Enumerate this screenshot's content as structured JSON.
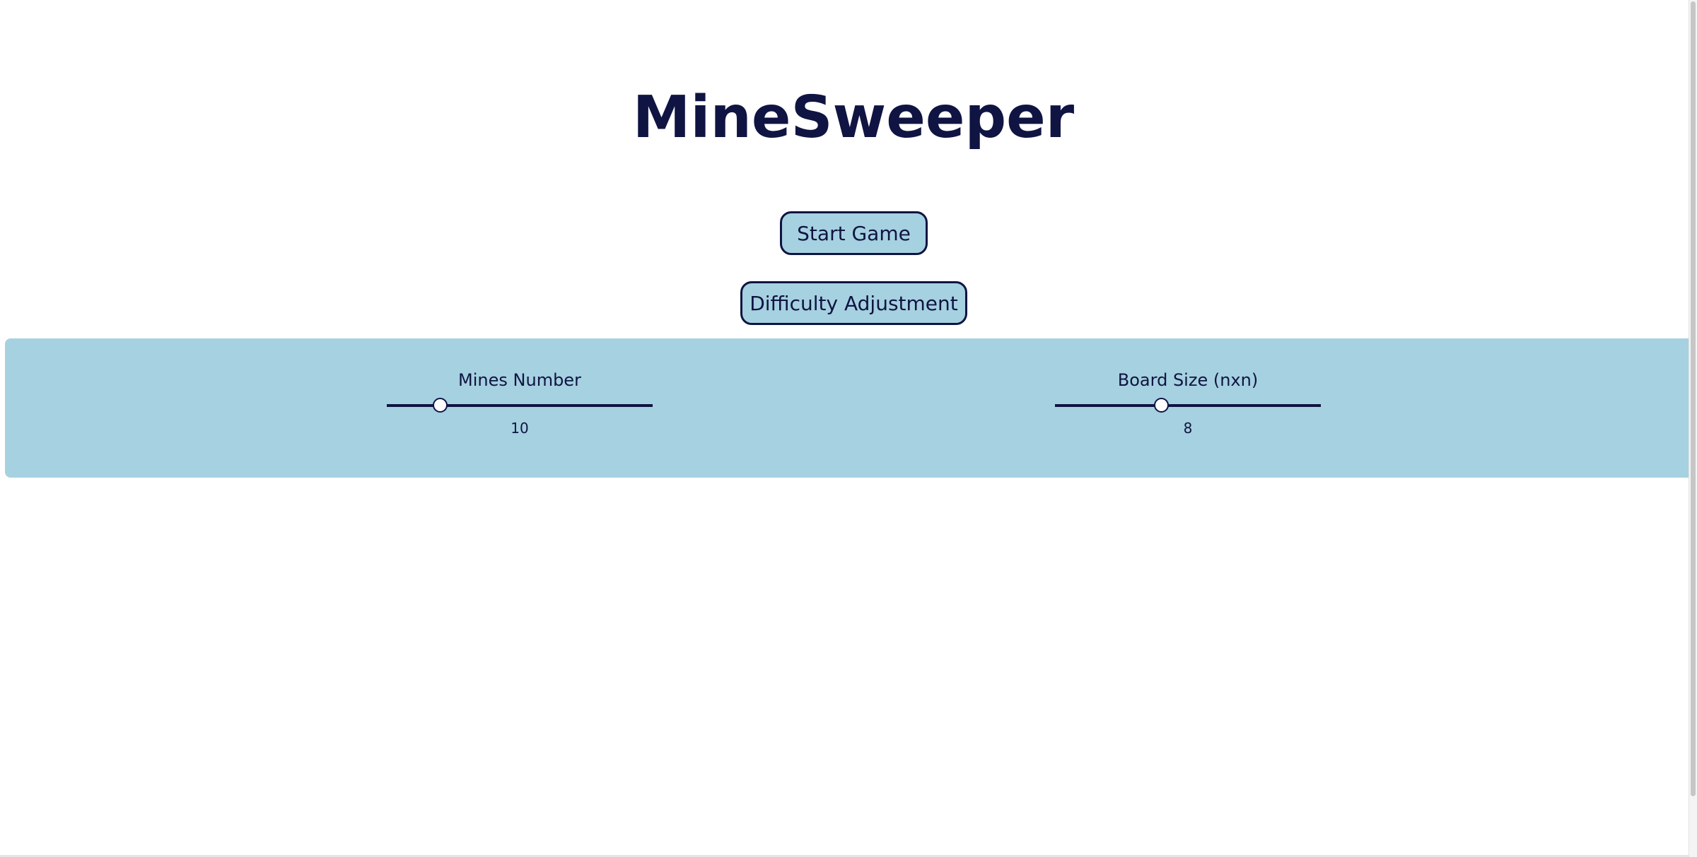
{
  "app": {
    "title": "MineSweeper"
  },
  "buttons": {
    "start_label": "Start Game",
    "difficulty_label": "Difficulty Adjustment"
  },
  "settings": {
    "mines": {
      "label": "Mines Number",
      "value": "10",
      "slider_fraction": 0.2
    },
    "board": {
      "label": "Board Size (nxn)",
      "value": "8",
      "slider_fraction": 0.4
    }
  },
  "colors": {
    "text": "#0f1442",
    "accent": "#a6d1e0",
    "background": "#ffffff"
  }
}
